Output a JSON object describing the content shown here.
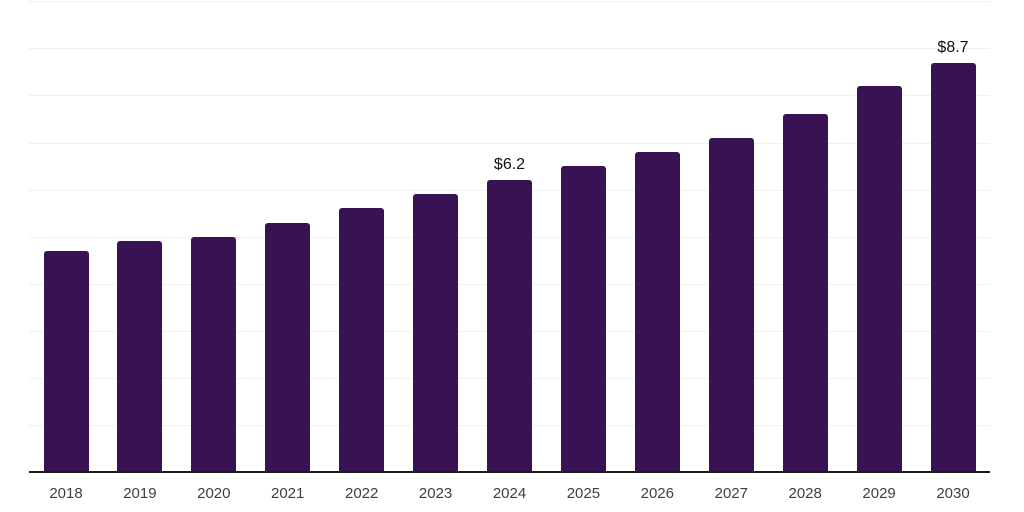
{
  "chart": {
    "background_color": "#ffffff",
    "bar_color": "#381252",
    "grid_color": "#f0f0f0",
    "axis_line_color": "#1c1c1c",
    "tick_label_color": "#3f3f3f",
    "annotation_color": "#101010"
  },
  "chart_data": {
    "type": "bar",
    "categories": [
      "2018",
      "2019",
      "2020",
      "2021",
      "2022",
      "2023",
      "2024",
      "2025",
      "2026",
      "2027",
      "2028",
      "2029",
      "2030"
    ],
    "values": [
      4.7,
      4.9,
      5.0,
      5.3,
      5.6,
      5.9,
      6.2,
      6.5,
      6.8,
      7.1,
      7.6,
      8.2,
      8.7
    ],
    "value_prefix": "$",
    "annotations": [
      {
        "category": "2024",
        "label": "$6.2"
      },
      {
        "category": "2030",
        "label": "$8.7"
      }
    ],
    "title": "",
    "xlabel": "",
    "ylabel": "",
    "ylim": [
      0,
      10
    ],
    "grid": "horizontal gridlines every 1 unit, no y-axis tick labels",
    "legend": "none"
  }
}
